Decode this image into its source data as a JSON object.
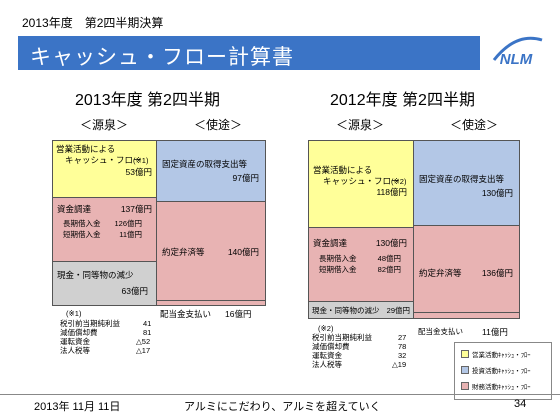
{
  "header": {
    "period": "2013年度　第2四半期決算",
    "title": "キャッシュ・フロー計算書"
  },
  "logo": {
    "text": "NLM"
  },
  "left": {
    "year": "2013年度 第2四半期",
    "source_label": "＜源泉＞",
    "use_label": "＜使途＞",
    "op_cf": {
      "label1": "営業活動による",
      "label2": "キャッシュ・フロー",
      "note": "(※1)",
      "value": "53億円"
    },
    "fin": {
      "label": "資金調達",
      "value": "137億円",
      "items": [
        {
          "label": "長期借入金",
          "value": "126億円"
        },
        {
          "label": "短期借入金",
          "value": "11億円"
        }
      ]
    },
    "cash_dec": {
      "label": "現金・同等物の減少",
      "value": "63億円"
    },
    "capex": {
      "label": "固定資産の取得支出等",
      "value": "97億円"
    },
    "repay": {
      "label": "約定弁済等",
      "value": "140億円"
    },
    "div": {
      "label": "配当金支払い",
      "value": "16億円"
    },
    "notes": {
      "mark": "(※1)",
      "items": [
        {
          "label": "税引前当期純利益",
          "value": "41"
        },
        {
          "label": "減価償却費",
          "value": "81"
        },
        {
          "label": "運転資金",
          "value": "△52"
        },
        {
          "label": "法人税等",
          "value": "△17"
        }
      ]
    }
  },
  "right": {
    "year": "2012年度 第2四半期",
    "source_label": "＜源泉＞",
    "use_label": "＜使途＞",
    "op_cf": {
      "label1": "営業活動による",
      "label2": "キャッシュ・フロー",
      "note": "(※2)",
      "value": "118億円"
    },
    "fin": {
      "label": "資金調達",
      "value": "130億円",
      "items": [
        {
          "label": "長期借入金",
          "value": "48億円"
        },
        {
          "label": "短期借入金",
          "value": "82億円"
        }
      ]
    },
    "cash_dec": {
      "label": "現金・同等物の減少",
      "value": "29億円"
    },
    "capex": {
      "label": "固定資産の取得支出等",
      "value": "130億円"
    },
    "repay": {
      "label": "約定弁済等",
      "value": "136億円"
    },
    "div": {
      "label": "配当金支払い",
      "value": "11億円"
    },
    "notes": {
      "mark": "(※2)",
      "items": [
        {
          "label": "税引前当期純利益",
          "value": "27"
        },
        {
          "label": "減価償却費",
          "value": "78"
        },
        {
          "label": "運転資金",
          "value": "32"
        },
        {
          "label": "法人税等",
          "value": "△19"
        }
      ]
    }
  },
  "legend": [
    {
      "label": "営業活動ｷｬｯｼｭ・ﾌﾛｰ",
      "color": "#ffff99"
    },
    {
      "label": "投資活動ｷｬｯｼｭ・ﾌﾛｰ",
      "color": "#b3c7e6"
    },
    {
      "label": "財務活動ｷｬｯｼｭ・ﾌﾛｰ",
      "color": "#e8b3b3"
    }
  ],
  "footer": {
    "date": "2013年 11月 11日",
    "slogan": "アルミにこだわり、アルミを超えていく",
    "page": "34"
  }
}
